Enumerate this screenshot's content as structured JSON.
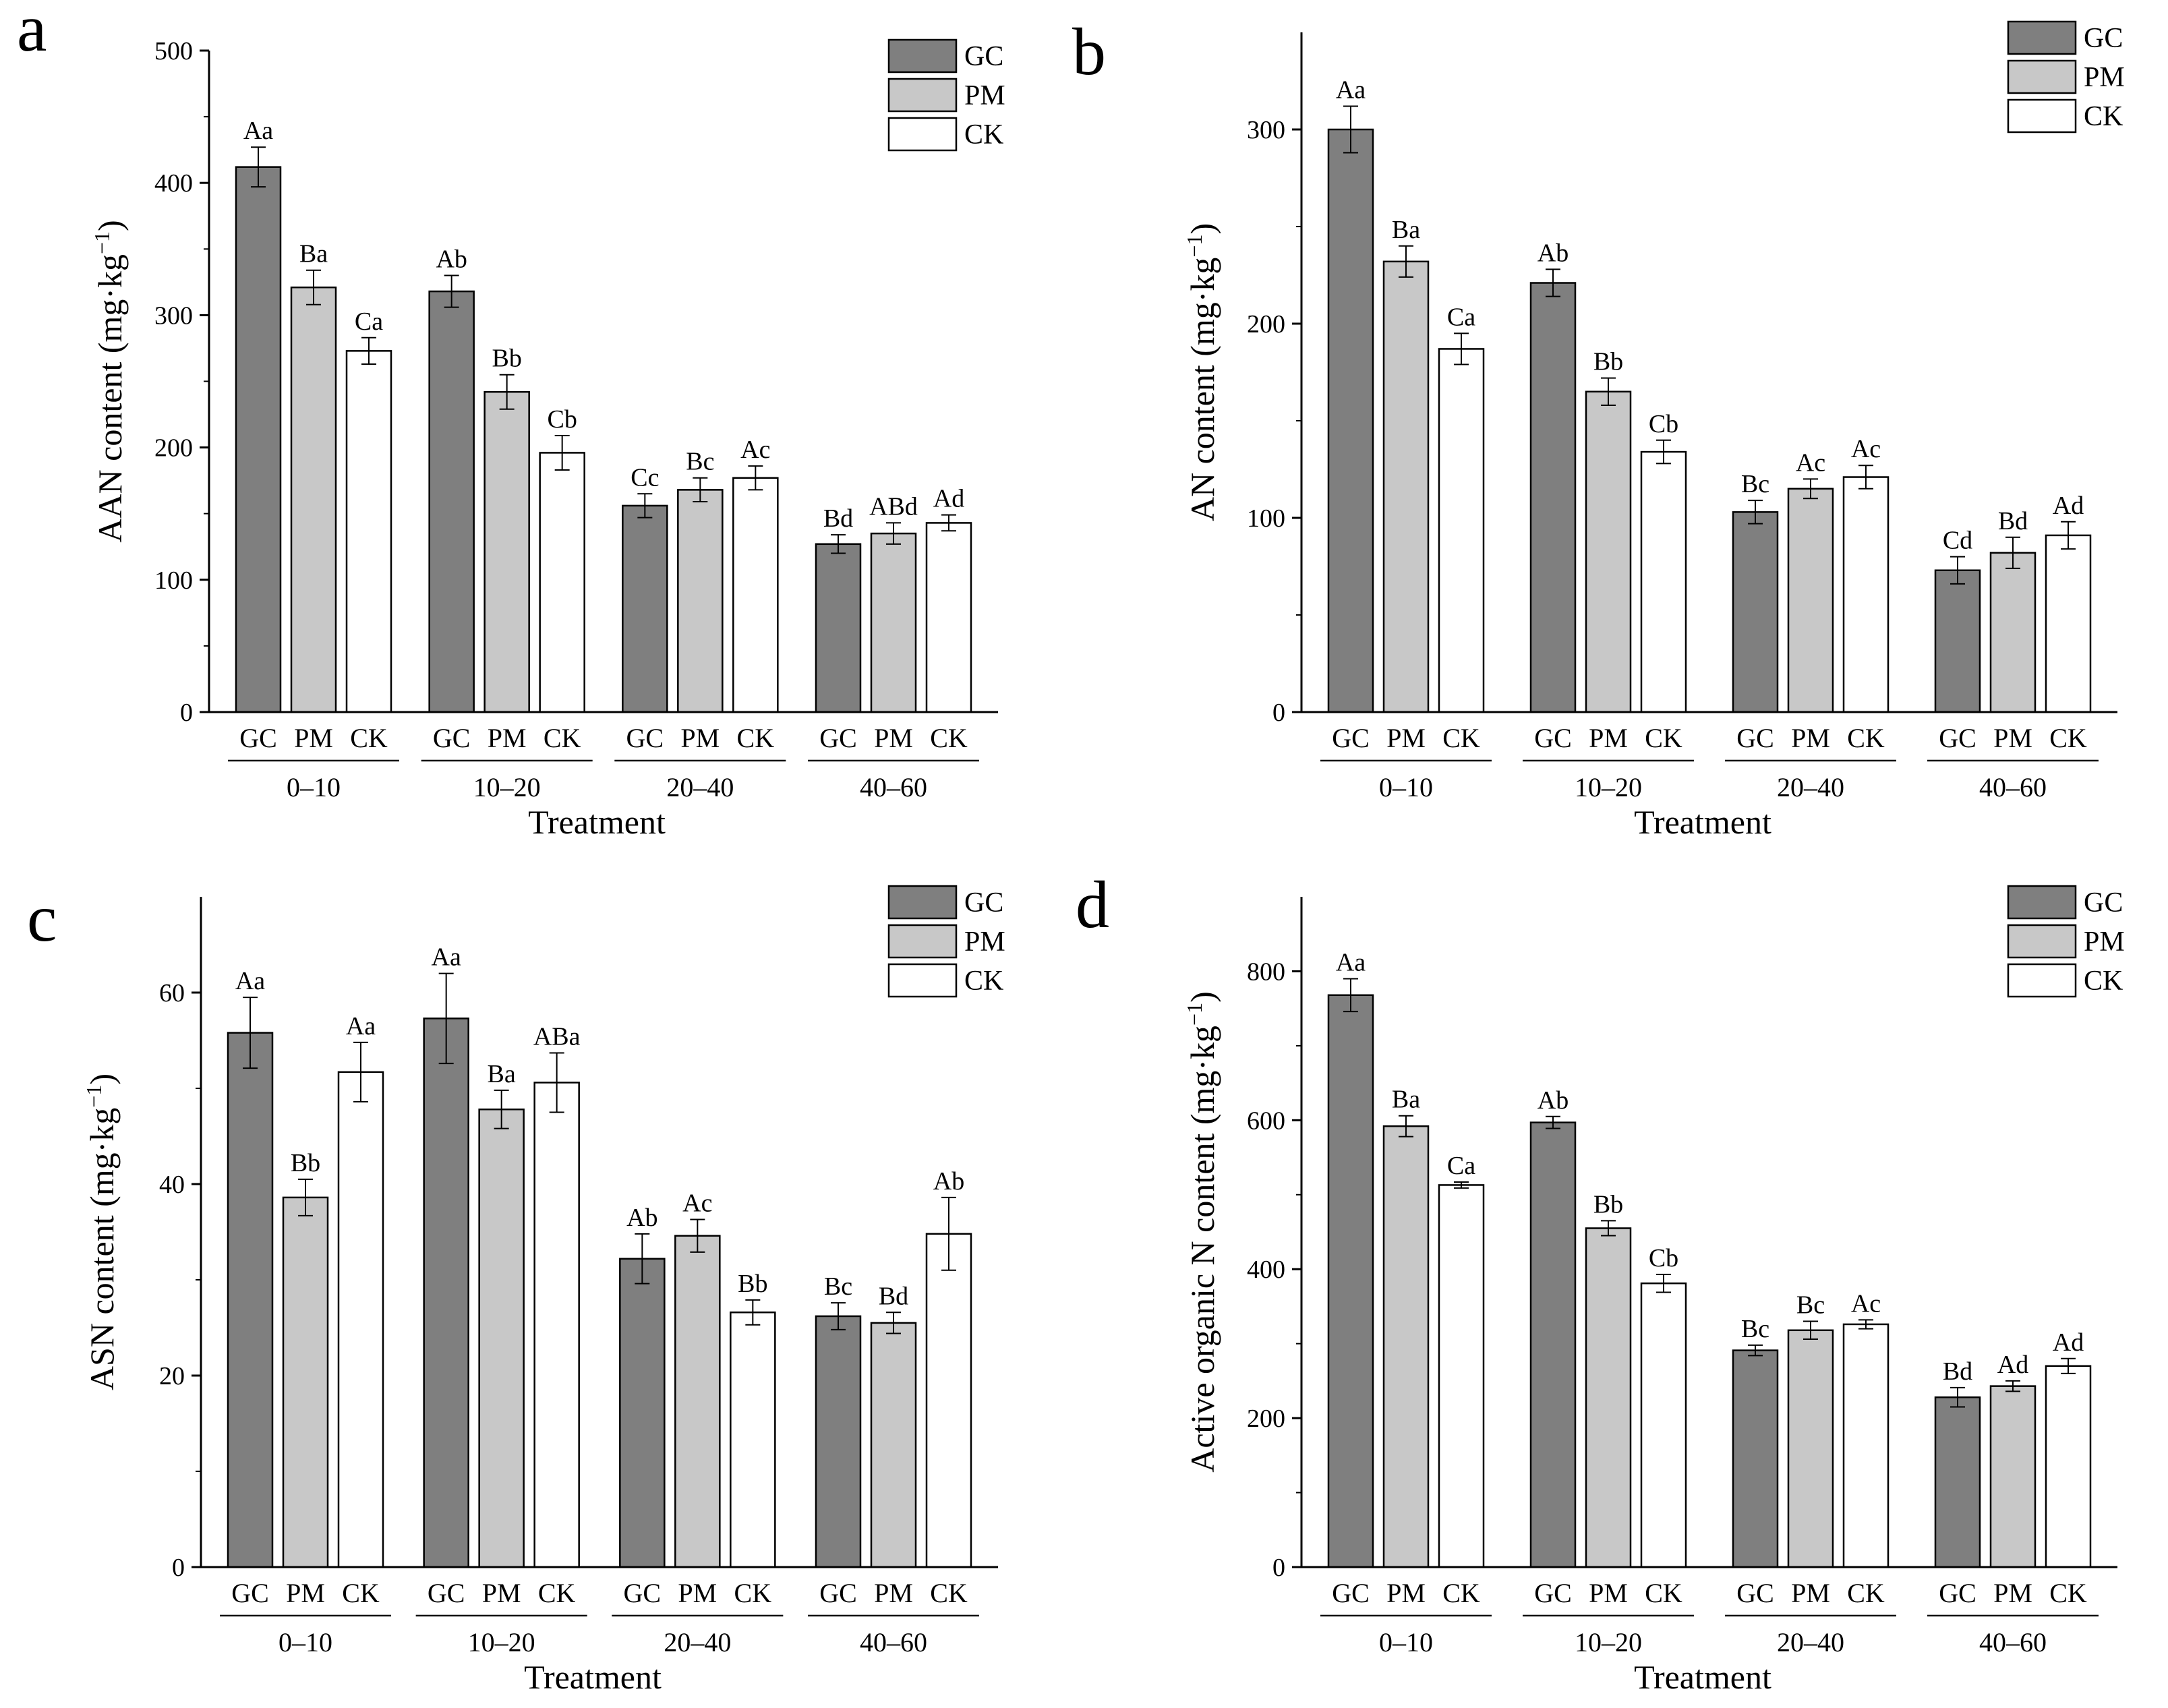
{
  "colors": {
    "GC": "#7f7f7f",
    "PM": "#c8c8c8",
    "CK": "#ffffff",
    "axis": "#000000"
  },
  "shared": {
    "categories": [
      "0–10",
      "10–20",
      "20–40",
      "40–60"
    ],
    "series_names": [
      "GC",
      "PM",
      "CK"
    ],
    "xlabel": "Treatment"
  },
  "chart_data": [
    {
      "panel": "a",
      "type": "bar",
      "title": "",
      "ylabel": "AAN content",
      "yunit": "(mg·kg",
      "yunit_exp": "−1",
      "ylim": [
        0,
        500
      ],
      "yticks": [
        0,
        100,
        200,
        300,
        400,
        500
      ],
      "legend": "top-right",
      "categories": [
        "0–10",
        "10–20",
        "20–40",
        "40–60"
      ],
      "series": [
        {
          "name": "GC",
          "values": [
            412,
            318,
            156,
            127
          ],
          "errors": [
            15,
            12,
            9,
            7
          ],
          "labels": [
            "Aa",
            "Ab",
            "Cc",
            "Bd"
          ]
        },
        {
          "name": "PM",
          "values": [
            321,
            242,
            168,
            135
          ],
          "errors": [
            13,
            13,
            9,
            8
          ],
          "labels": [
            "Ba",
            "Bb",
            "Bc",
            "ABd"
          ]
        },
        {
          "name": "CK",
          "values": [
            273,
            196,
            177,
            143
          ],
          "errors": [
            10,
            13,
            9,
            6
          ],
          "labels": [
            "Ca",
            "Cb",
            "Ac",
            "Ad"
          ]
        }
      ]
    },
    {
      "panel": "b",
      "type": "bar",
      "title": "",
      "ylabel": "AN content",
      "yunit": "(mg·kg",
      "yunit_exp": "−1",
      "ylim": [
        0,
        350
      ],
      "yticks": [
        0,
        100,
        200,
        300
      ],
      "legend": "top-right",
      "categories": [
        "0–10",
        "10–20",
        "20–40",
        "40–60"
      ],
      "series": [
        {
          "name": "GC",
          "values": [
            300,
            221,
            103,
            73
          ],
          "errors": [
            12,
            7,
            6,
            7
          ],
          "labels": [
            "Aa",
            "Ab",
            "Bc",
            "Cd"
          ]
        },
        {
          "name": "PM",
          "values": [
            232,
            165,
            115,
            82
          ],
          "errors": [
            8,
            7,
            5,
            8
          ],
          "labels": [
            "Ba",
            "Bb",
            "Ac",
            "Bd"
          ]
        },
        {
          "name": "CK",
          "values": [
            187,
            134,
            121,
            91
          ],
          "errors": [
            8,
            6,
            6,
            7
          ],
          "labels": [
            "Ca",
            "Cb",
            "Ac",
            "Ad"
          ]
        }
      ]
    },
    {
      "panel": "c",
      "type": "bar",
      "title": "",
      "ylabel": "ASN content",
      "yunit": "(mg·kg",
      "yunit_exp": "−1",
      "ylim": [
        0,
        70
      ],
      "yticks": [
        0,
        20,
        40,
        60
      ],
      "legend": "top-right",
      "categories": [
        "0–10",
        "10–20",
        "20–40",
        "40–60"
      ],
      "series": [
        {
          "name": "GC",
          "values": [
            55.8,
            57.3,
            32.2,
            26.2
          ],
          "errors": [
            3.7,
            4.7,
            2.6,
            1.4
          ],
          "labels": [
            "Aa",
            "Aa",
            "Ab",
            "Bc"
          ]
        },
        {
          "name": "PM",
          "values": [
            38.6,
            47.8,
            34.6,
            25.5
          ],
          "errors": [
            1.9,
            2.0,
            1.7,
            1.1
          ],
          "labels": [
            "Bb",
            "Ba",
            "Ac",
            "Bd"
          ]
        },
        {
          "name": "CK",
          "values": [
            51.7,
            50.6,
            26.6,
            34.8
          ],
          "errors": [
            3.1,
            3.1,
            1.3,
            3.8
          ],
          "labels": [
            "Aa",
            "ABa",
            "Bb",
            "Ab"
          ]
        }
      ]
    },
    {
      "panel": "d",
      "type": "bar",
      "title": "",
      "ylabel": "Active organic N content",
      "yunit": "(mg·kg",
      "yunit_exp": "−1",
      "ylim": [
        0,
        900
      ],
      "yticks": [
        0,
        200,
        400,
        600,
        800
      ],
      "legend": "top-right",
      "categories": [
        "0–10",
        "10–20",
        "20–40",
        "40–60"
      ],
      "series": [
        {
          "name": "GC",
          "values": [
            768,
            597,
            291,
            228
          ],
          "errors": [
            22,
            8,
            7,
            13
          ],
          "labels": [
            "Aa",
            "Ab",
            "Bc",
            "Bd"
          ]
        },
        {
          "name": "PM",
          "values": [
            592,
            455,
            318,
            243
          ],
          "errors": [
            14,
            10,
            12,
            7
          ],
          "labels": [
            "Ba",
            "Bb",
            "Bc",
            "Ad"
          ]
        },
        {
          "name": "CK",
          "values": [
            513,
            381,
            326,
            270
          ],
          "errors": [
            4,
            12,
            6,
            10
          ],
          "labels": [
            "Ca",
            "Cb",
            "Ac",
            "Ad"
          ]
        }
      ]
    }
  ]
}
